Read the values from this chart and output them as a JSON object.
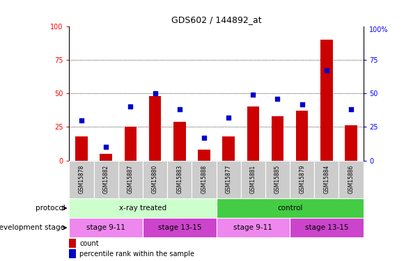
{
  "title": "GDS602 / 144892_at",
  "samples": [
    "GSM15878",
    "GSM15882",
    "GSM15887",
    "GSM15880",
    "GSM15883",
    "GSM15888",
    "GSM15877",
    "GSM15881",
    "GSM15885",
    "GSM15879",
    "GSM15884",
    "GSM15886"
  ],
  "counts": [
    18,
    5,
    25,
    48,
    29,
    8,
    18,
    40,
    33,
    37,
    90,
    26
  ],
  "percentiles": [
    30,
    10,
    40,
    50,
    38,
    17,
    32,
    49,
    46,
    42,
    67,
    38
  ],
  "bar_color": "#cc0000",
  "dot_color": "#0000cc",
  "ylim": [
    0,
    100
  ],
  "yticks": [
    0,
    25,
    50,
    75,
    100
  ],
  "protocol_groups": [
    {
      "label": "x-ray treated",
      "start": 0,
      "end": 6,
      "color": "#ccffcc"
    },
    {
      "label": "control",
      "start": 6,
      "end": 12,
      "color": "#44cc44"
    }
  ],
  "stage_groups": [
    {
      "label": "stage 9-11",
      "start": 0,
      "end": 3,
      "color": "#ee88ee"
    },
    {
      "label": "stage 13-15",
      "start": 3,
      "end": 6,
      "color": "#cc44cc"
    },
    {
      "label": "stage 9-11",
      "start": 6,
      "end": 9,
      "color": "#ee88ee"
    },
    {
      "label": "stage 13-15",
      "start": 9,
      "end": 12,
      "color": "#cc44cc"
    }
  ],
  "legend_count_label": "count",
  "legend_pct_label": "percentile rank within the sample",
  "bar_width": 0.5,
  "xticklabel_bg": "#cccccc",
  "right_axis_top_label": "100%"
}
